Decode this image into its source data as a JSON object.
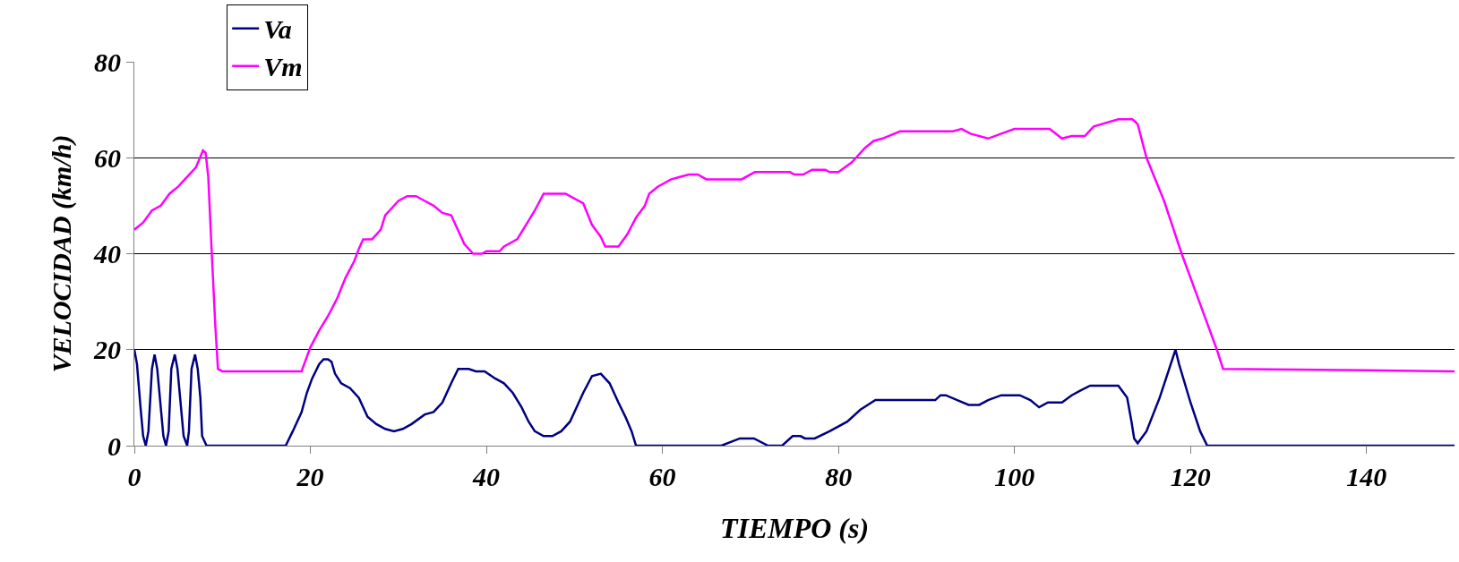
{
  "chart_data": {
    "type": "line",
    "xlabel": "TIEMPO (s)",
    "ylabel": "VELOCIDAD (km/h)",
    "xlim": [
      0,
      150
    ],
    "xticks": [
      0,
      20,
      40,
      60,
      80,
      100,
      120,
      140
    ],
    "ylim": [
      0,
      80
    ],
    "yticks": [
      0,
      20,
      40,
      60,
      80
    ],
    "grid": "y",
    "legend": "top left",
    "marker": "none",
    "line_style": "solid",
    "series": [
      {
        "name": "Va",
        "color": "#000080",
        "x": [
          0,
          0.3,
          0.7,
          1,
          1.3,
          1.6,
          2,
          2.3,
          2.6,
          3,
          3.3,
          3.6,
          3.9,
          4.2,
          4.6,
          4.9,
          5.3,
          5.6,
          6,
          6.2,
          6.5,
          6.9,
          7.2,
          7.5,
          7.7,
          8.2,
          17.2,
          18,
          19,
          19.6,
          20.2,
          21,
          21.5,
          22,
          22.4,
          22.8,
          23.5,
          24.5,
          25.5,
          26.5,
          27.5,
          28.5,
          29.5,
          30.5,
          31.5,
          33,
          34,
          35,
          36,
          36.8,
          38,
          38.8,
          39.8,
          41,
          42,
          43,
          44,
          44.8,
          45.5,
          46.5,
          47.5,
          48.5,
          49.5,
          50.5,
          51,
          52,
          53,
          54,
          55,
          55.8,
          56.5,
          57,
          66.7,
          68.8,
          70.4,
          72,
          73.6,
          74.8,
          75.7,
          76.2,
          77.3,
          79,
          81,
          82.5,
          84.2,
          91,
          91.6,
          92.2,
          93.5,
          94.8,
          96,
          97,
          98.5,
          100.6,
          101.8,
          102.8,
          103.8,
          105.4,
          106.5,
          107.5,
          108.6,
          111.8,
          112.8,
          113.3,
          113.6,
          114,
          115,
          116.5,
          118.3,
          118.7,
          120,
          121.1,
          121.9,
          150
        ],
        "values": [
          20,
          17,
          8,
          2,
          0,
          3,
          16,
          19,
          16,
          8,
          2,
          0,
          3,
          16,
          19,
          16,
          8,
          2,
          0,
          3,
          16,
          19,
          16,
          10,
          2,
          0,
          0,
          3,
          7,
          11,
          14,
          17,
          18,
          18,
          17.5,
          15,
          13,
          12,
          10,
          6,
          4.5,
          3.5,
          3,
          3.5,
          4.5,
          6.5,
          7,
          9,
          13,
          16,
          16,
          15.5,
          15.5,
          14,
          13,
          11,
          8,
          5,
          3,
          2,
          2,
          3,
          5,
          9,
          11,
          14.5,
          15,
          13,
          9,
          6,
          3,
          0,
          0,
          1.5,
          1.5,
          0,
          0,
          2,
          2,
          1.5,
          1.5,
          3,
          5,
          7.5,
          9.5,
          9.5,
          10.5,
          10.5,
          9.5,
          8.5,
          8.5,
          9.5,
          10.5,
          10.5,
          9.5,
          8,
          9,
          9,
          10.5,
          11.5,
          12.5,
          12.5,
          10,
          5,
          1.5,
          0.5,
          3,
          10,
          20,
          17,
          9,
          3,
          0,
          0
        ]
      },
      {
        "name": "Vm",
        "color": "#ff00ff",
        "x": [
          0,
          1,
          2,
          3,
          4,
          5,
          6,
          7,
          7.8,
          8.1,
          8.4,
          8.8,
          9.2,
          9.5,
          10,
          19,
          19.5,
          20,
          21,
          22,
          23,
          24,
          25,
          25.5,
          26,
          27,
          27.5,
          28,
          28.5,
          29,
          30,
          31,
          32,
          33,
          34,
          35,
          36,
          36.5,
          37.5,
          38.5,
          39.5,
          40,
          41.5,
          42,
          43.5,
          44.5,
          45.5,
          46.5,
          47.5,
          49,
          50,
          51,
          52,
          53,
          53.5,
          55,
          56,
          57,
          58,
          58.5,
          59.5,
          61,
          63,
          64,
          65,
          69,
          70.5,
          74.5,
          75,
          76,
          77,
          78.5,
          79,
          80,
          81.5,
          82,
          83,
          84,
          85,
          87,
          93,
          94,
          95,
          97,
          98.5,
          100,
          104,
          105.4,
          106.5,
          108,
          109,
          111.8,
          113.4,
          114,
          115,
          117,
          119,
          121,
          123,
          123.7,
          150
        ],
        "values": [
          45,
          46.5,
          49,
          50,
          52.5,
          54,
          56,
          58,
          61.5,
          61,
          56,
          40,
          25,
          16,
          15.5,
          15.5,
          18,
          20.5,
          24,
          27,
          30.5,
          35,
          38.5,
          41,
          43,
          43,
          44,
          45,
          48,
          49,
          51,
          52,
          52,
          51,
          50,
          48.5,
          48,
          46,
          42,
          40,
          40,
          40.5,
          40.5,
          41.5,
          43,
          46,
          49,
          52.5,
          52.5,
          52.5,
          51.5,
          50.5,
          46,
          43.5,
          41.5,
          41.5,
          44,
          47.5,
          50,
          52.5,
          54,
          55.5,
          56.5,
          56.5,
          55.5,
          55.5,
          57,
          57,
          56.5,
          56.5,
          57.5,
          57.5,
          57,
          57,
          59,
          60,
          62,
          63.5,
          64,
          65.5,
          65.5,
          66,
          65,
          64,
          65,
          66,
          66,
          64,
          64.5,
          64.5,
          66.5,
          68,
          68,
          67,
          60,
          51,
          40,
          30,
          20,
          16,
          15.5
        ]
      }
    ]
  }
}
